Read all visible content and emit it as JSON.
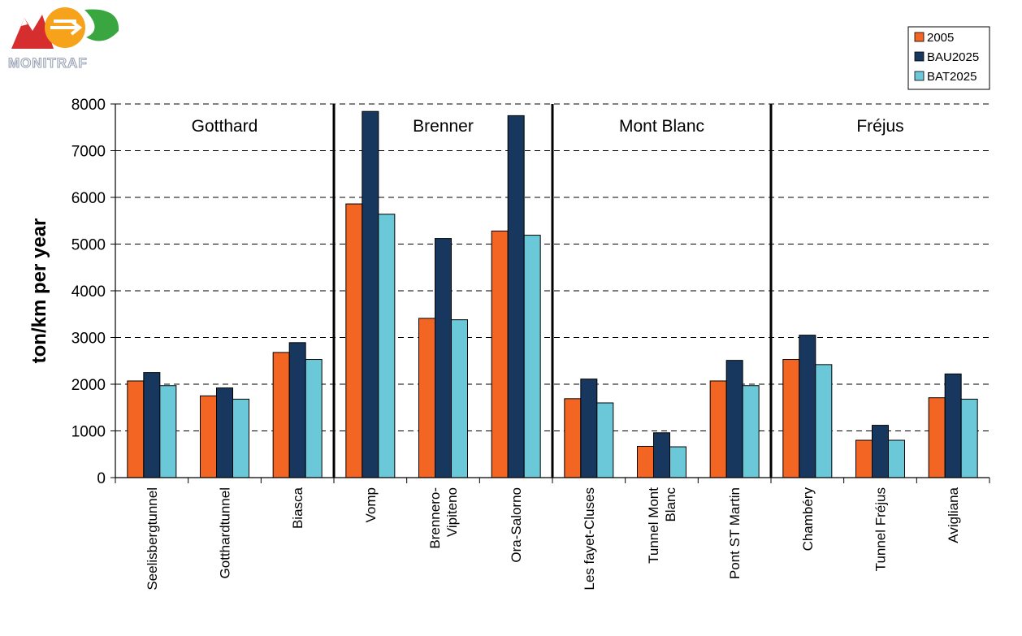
{
  "logo": {
    "text": "MONITRAF"
  },
  "colors": {
    "s2005": "#f26522",
    "bau": "#17375e",
    "bat": "#6bc8d8",
    "grid": "#000000"
  },
  "chart_data": {
    "type": "bar",
    "title": "",
    "xlabel": "",
    "ylabel": "ton/km per year",
    "ylim": [
      0,
      8000
    ],
    "yticks": [
      0,
      1000,
      2000,
      3000,
      4000,
      5000,
      6000,
      7000,
      8000
    ],
    "grid": "horizontal-dashed",
    "legend_position": "top-right",
    "groups": [
      {
        "name": "Gotthard",
        "start": 0,
        "end": 2
      },
      {
        "name": "Brenner",
        "start": 3,
        "end": 5
      },
      {
        "name": "Mont Blanc",
        "start": 6,
        "end": 8
      },
      {
        "name": "Fréjus",
        "start": 9,
        "end": 11
      }
    ],
    "categories": [
      [
        "Seelisbergtunnel"
      ],
      [
        "Gotthardtunnel"
      ],
      [
        "Biasca"
      ],
      [
        "Vomp"
      ],
      [
        "Brennero-",
        "Vipiteno"
      ],
      [
        "Ora-Salorno"
      ],
      [
        "Les fayet-Cluses"
      ],
      [
        "Tunnel Mont",
        "Blanc"
      ],
      [
        "Pont ST Martin"
      ],
      [
        "Chambéry"
      ],
      [
        "Tunnel Fréjus"
      ],
      [
        "Avigliana"
      ]
    ],
    "series": [
      {
        "name": "2005",
        "color": "#f26522",
        "values": [
          2070,
          1750,
          2680,
          5860,
          3410,
          5280,
          1690,
          670,
          2070,
          2530,
          800,
          1710
        ]
      },
      {
        "name": "BAU2025",
        "color": "#17375e",
        "values": [
          2250,
          1920,
          2890,
          7840,
          5120,
          7750,
          2110,
          960,
          2510,
          3050,
          1120,
          2220
        ]
      },
      {
        "name": "BAT2025",
        "color": "#6bc8d8",
        "values": [
          1970,
          1680,
          2530,
          5640,
          3380,
          5190,
          1600,
          660,
          1970,
          2420,
          800,
          1680
        ]
      }
    ]
  }
}
